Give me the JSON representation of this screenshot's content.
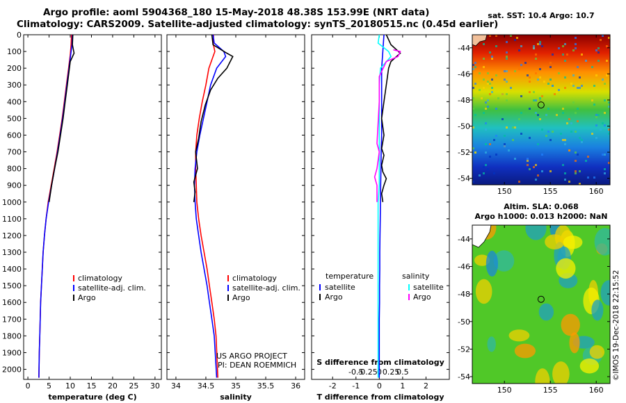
{
  "header": {
    "line1": "Argo profile: aoml 5904368_180 15-May-2018 48.38S 153.99E (NRT data)",
    "line2": "Climatology: CARS2009. Satellite-adjusted climatology: synTS_20180515.nc (0.45d earlier)"
  },
  "credits": {
    "project": "US ARGO PROJECT",
    "pi": "PI: DEAN ROEMMICH",
    "imos": "©IMOS 19-Dec-2018 22:15:52"
  },
  "colors": {
    "climatology": "#ff0000",
    "satellite": "#0000ff",
    "argo": "#000000",
    "salinity_satellite": "#00ffff",
    "salinity_argo": "#ff00ff"
  },
  "chart_data": [
    {
      "id": "temperature",
      "type": "line",
      "xlabel": "temperature (deg C)",
      "ylabel": "",
      "xlim": [
        -1,
        31.5
      ],
      "ylim": [
        2060,
        0
      ],
      "xticks": [
        0,
        5,
        10,
        15,
        20,
        25,
        30
      ],
      "xticklabels": [
        "0",
        "5",
        "10",
        "15",
        "20",
        "25",
        "30"
      ],
      "yticks": [
        0,
        100,
        200,
        300,
        400,
        500,
        600,
        700,
        800,
        900,
        1000,
        1100,
        1200,
        1300,
        1400,
        1500,
        1600,
        1700,
        1800,
        1900,
        2000
      ],
      "legend": [
        "climatology",
        "satellite-adj. clim.",
        "Argo"
      ],
      "series": [
        {
          "name": "climatology",
          "color": "#ff0000",
          "x": [
            10.3,
            10.2,
            10.0,
            9.6,
            9.1,
            8.6,
            8.1,
            7.5,
            6.9,
            6.2,
            5.5,
            4.8,
            4.3,
            3.9,
            3.6,
            3.4,
            3.2,
            3.0,
            2.9,
            2.8,
            2.7,
            2.6
          ],
          "y": [
            0,
            60,
            120,
            200,
            300,
            400,
            500,
            600,
            700,
            800,
            900,
            1000,
            1100,
            1200,
            1300,
            1400,
            1500,
            1600,
            1700,
            1800,
            1900,
            2050
          ]
        },
        {
          "name": "satellite-adj. clim.",
          "color": "#0000ff",
          "x": [
            10.5,
            10.4,
            10.1,
            9.7,
            9.2,
            8.7,
            8.2,
            7.6,
            7.0,
            6.3,
            5.6,
            4.9,
            4.3,
            3.9,
            3.6,
            3.4,
            3.2,
            3.0,
            2.9,
            2.8,
            2.7,
            2.6
          ],
          "y": [
            0,
            60,
            120,
            200,
            300,
            400,
            500,
            600,
            700,
            800,
            900,
            1000,
            1100,
            1200,
            1300,
            1400,
            1500,
            1600,
            1700,
            1800,
            1900,
            2050
          ]
        },
        {
          "name": "Argo",
          "color": "#000000",
          "x": [
            10.6,
            10.5,
            10.9,
            10.0,
            9.3,
            8.8,
            8.3,
            7.7,
            7.1,
            6.3,
            5.6,
            5.0
          ],
          "y": [
            0,
            60,
            110,
            160,
            300,
            400,
            500,
            600,
            700,
            800,
            900,
            1000
          ]
        }
      ]
    },
    {
      "id": "salinity",
      "type": "line",
      "xlabel": "salinity",
      "ylabel": "",
      "xlim": [
        33.85,
        36.15
      ],
      "ylim": [
        2060,
        0
      ],
      "xticks": [
        34,
        34.5,
        35,
        35.5,
        36
      ],
      "xticklabels": [
        "34",
        "34.5",
        "35",
        "35.5",
        "36"
      ],
      "legend": [
        "climatology",
        "satellite-adj. clim.",
        "Argo"
      ],
      "series": [
        {
          "name": "climatology",
          "color": "#ff0000",
          "x": [
            34.63,
            34.62,
            34.65,
            34.6,
            34.55,
            34.5,
            34.44,
            34.39,
            34.35,
            34.33,
            34.33,
            34.34,
            34.35,
            34.38,
            34.42,
            34.47,
            34.52,
            34.56,
            34.6,
            34.64,
            34.67,
            34.7
          ],
          "y": [
            0,
            50,
            100,
            150,
            200,
            300,
            400,
            500,
            600,
            700,
            800,
            900,
            1000,
            1100,
            1200,
            1300,
            1400,
            1500,
            1600,
            1700,
            1800,
            2050
          ]
        },
        {
          "name": "satellite-adj. clim.",
          "color": "#0000ff",
          "x": [
            34.62,
            34.64,
            34.8,
            34.83,
            34.68,
            34.58,
            34.52,
            34.46,
            34.4,
            34.35,
            34.32,
            34.31,
            34.32,
            34.34,
            34.38,
            34.42,
            34.47,
            34.52,
            34.56,
            34.6,
            34.64,
            34.68
          ],
          "y": [
            0,
            50,
            100,
            130,
            200,
            300,
            400,
            500,
            600,
            700,
            800,
            900,
            1000,
            1100,
            1200,
            1300,
            1400,
            1500,
            1600,
            1700,
            1800,
            2050
          ]
        },
        {
          "name": "Argo",
          "color": "#000000",
          "x": [
            34.6,
            34.62,
            34.85,
            34.95,
            34.85,
            34.7,
            34.58,
            34.49,
            34.42,
            34.38,
            34.33,
            34.36,
            34.3,
            34.32,
            34.3
          ],
          "y": [
            0,
            60,
            110,
            130,
            200,
            260,
            330,
            420,
            520,
            620,
            700,
            800,
            880,
            940,
            1000
          ]
        }
      ]
    },
    {
      "id": "difference",
      "type": "line",
      "xlabel": "T difference from climatology",
      "xlabel2": "S difference from climatology",
      "xlim": [
        -2.9,
        3.0
      ],
      "ylim": [
        2060,
        0
      ],
      "xticks": [
        -2,
        -1,
        0,
        1,
        2
      ],
      "xticklabels": [
        "-2",
        "-1",
        "0",
        "1",
        "2"
      ],
      "xticks2": [
        -1.0,
        -0.5,
        0,
        0.5,
        1.0
      ],
      "xticklabels2": [
        "-0.5",
        "-0.25",
        "0",
        "0.25",
        "0.5"
      ],
      "legend_temperature_title": "temperature",
      "legend_salinity_title": "salinity",
      "legend_temperature": [
        "satellite",
        "Argo"
      ],
      "legend_salinity": [
        "satellite",
        "Argo"
      ],
      "series": [
        {
          "name": "temperature satellite",
          "color": "#0000ff",
          "x": [
            0.2,
            0.15,
            0.1,
            0.1,
            0.1,
            0.1,
            0.1,
            0.08,
            0.07,
            0.06,
            0.05,
            0.04,
            0.03,
            0.02,
            0.02,
            0.01,
            0.01,
            0.0,
            0.0,
            0.0,
            0.0
          ],
          "y": [
            0,
            100,
            200,
            300,
            400,
            500,
            600,
            700,
            800,
            900,
            1000,
            1100,
            1200,
            1300,
            1400,
            1500,
            1600,
            1700,
            1800,
            1900,
            2050
          ]
        },
        {
          "name": "temperature Argo",
          "color": "#000000",
          "x": [
            0.3,
            0.5,
            0.9,
            0.5,
            0.4,
            0.3,
            0.2,
            0.1,
            0.2,
            0.1,
            0.2,
            0.1,
            0.15,
            0.3,
            0.2,
            0.1,
            0.15
          ],
          "y": [
            0,
            60,
            110,
            160,
            200,
            300,
            400,
            500,
            600,
            680,
            720,
            780,
            820,
            860,
            900,
            950,
            1000
          ]
        },
        {
          "name": "salinity satellite",
          "color": "#00ffff",
          "x": [
            0.0,
            -0.05,
            0.4,
            0.5,
            0.05,
            0.0,
            0.0,
            0.0,
            0.0,
            0.0,
            0.0,
            0.0,
            -0.05,
            -0.05,
            -0.05,
            -0.05,
            -0.05,
            -0.05,
            -0.05,
            -0.05,
            -0.05
          ],
          "y": [
            0,
            50,
            100,
            130,
            200,
            300,
            400,
            500,
            600,
            700,
            800,
            900,
            1000,
            1100,
            1200,
            1300,
            1400,
            1500,
            1600,
            1700,
            2050
          ]
        },
        {
          "name": "salinity Argo",
          "color": "#ff00ff",
          "x": [
            0.6,
            0.9,
            0.8,
            0.3,
            0.0,
            0.0,
            -0.1,
            0.0,
            -0.1,
            -0.2,
            -0.1,
            -0.1
          ],
          "y": [
            90,
            100,
            130,
            160,
            250,
            400,
            650,
            700,
            800,
            850,
            900,
            1000
          ]
        }
      ]
    },
    {
      "id": "sst_map",
      "type": "heatmap",
      "title": "sat. SST: 10.4 Argo: 10.7",
      "xlim": [
        146.5,
        161.5
      ],
      "ylim": [
        -54.5,
        -43
      ],
      "xticks": [
        150,
        155,
        160
      ],
      "xticklabels": [
        "150",
        "155",
        "160"
      ],
      "yticks": [
        -44,
        -46,
        -48,
        -50,
        -52,
        -54
      ],
      "yticklabels": [
        "-44",
        "-46",
        "-48",
        "-50",
        "-52",
        "-54"
      ],
      "float_lon": 153.99,
      "float_lat": -48.38
    },
    {
      "id": "sla_map",
      "type": "heatmap",
      "title": "Altim. SLA: 0.068",
      "subtitle": "Argo h1000: 0.013 h2000: NaN",
      "xlim": [
        146.5,
        161.5
      ],
      "ylim": [
        -54.5,
        -43
      ],
      "xticks": [
        150,
        155,
        160
      ],
      "xticklabels": [
        "150",
        "155",
        "160"
      ],
      "yticks": [
        -44,
        -46,
        -48,
        -50,
        -52,
        -54
      ],
      "yticklabels": [
        "-44",
        "-46",
        "-48",
        "-50",
        "-52",
        "-54"
      ],
      "float_lon": 153.99,
      "float_lat": -48.38
    }
  ]
}
